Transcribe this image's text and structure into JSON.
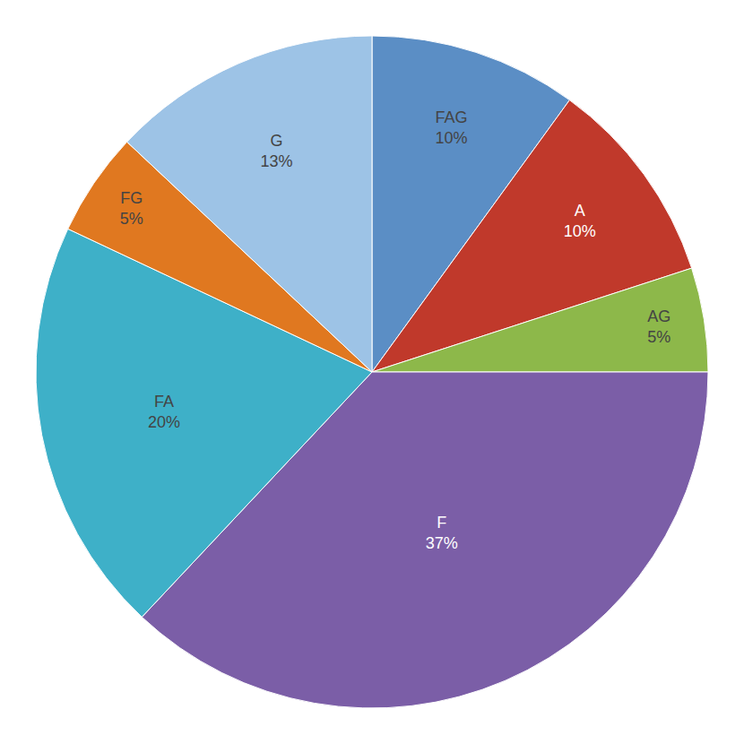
{
  "chart_data": {
    "type": "pie",
    "categories": [
      "FAG",
      "A",
      "AG",
      "F",
      "FA",
      "FG",
      "G"
    ],
    "values": [
      10,
      10,
      5,
      37,
      20,
      5,
      13
    ],
    "value_labels": [
      "10%",
      "10%",
      "5%",
      "37%",
      "20%",
      "5%",
      "13%"
    ],
    "colors": [
      "#5B8EC5",
      "#C0392B",
      "#8DB84A",
      "#7B5EA7",
      "#3EB0C8",
      "#E07820",
      "#9DC3E6"
    ],
    "data_labels": true
  }
}
